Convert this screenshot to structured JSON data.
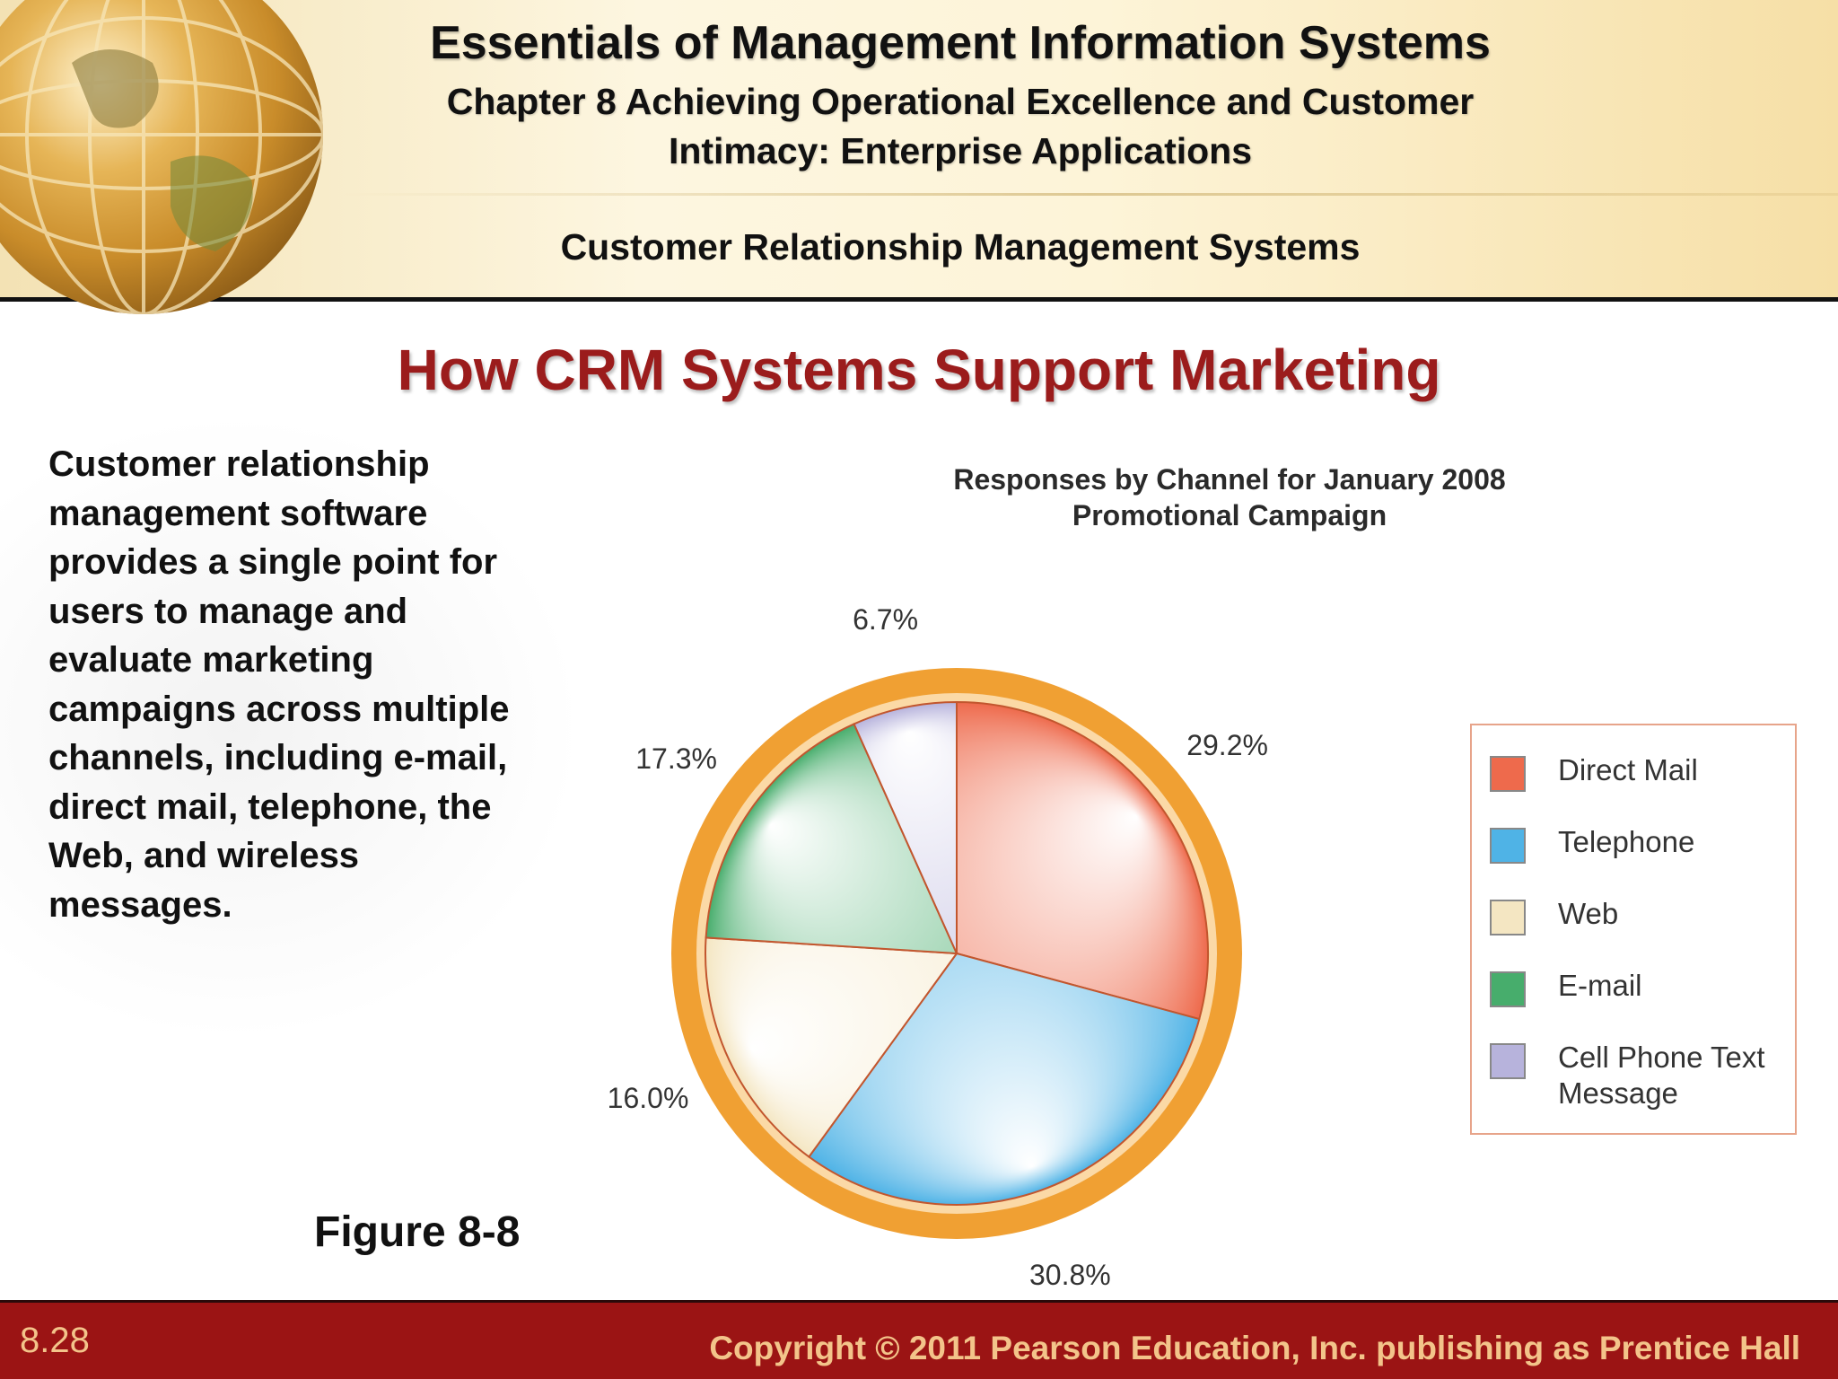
{
  "header": {
    "title": "Essentials of Management Information Systems",
    "chapter_line1": "Chapter 8 Achieving Operational Excellence and Customer",
    "chapter_line2": "Intimacy: Enterprise Applications",
    "section": "Customer Relationship Management Systems"
  },
  "slide": {
    "title": "How CRM Systems Support Marketing",
    "body": "Customer relationship management software provides a single point for users to manage and evaluate marketing campaigns across multiple channels, including e-mail, direct mail, telephone, the Web, and wireless messages.",
    "figure_label": "Figure 8-8"
  },
  "chart_data": {
    "type": "pie",
    "title_line1": "Responses by Channel for January 2008",
    "title_line2": "Promotional Campaign",
    "slices": [
      {
        "name": "Direct Mail",
        "value": 29.2,
        "label": "29.2%",
        "color": "#ee6a4c"
      },
      {
        "name": "Telephone",
        "value": 30.8,
        "label": "30.8%",
        "color": "#4fb3e6"
      },
      {
        "name": "Web",
        "value": 16.0,
        "label": "16.0%",
        "color": "#f4e6c2"
      },
      {
        "name": "E-mail",
        "value": 17.3,
        "label": "17.3%",
        "color": "#47ad6c"
      },
      {
        "name": "Cell Phone Text Message",
        "value": 6.7,
        "label": "6.7%",
        "color": "#b7b3dc"
      }
    ],
    "legend": {
      "position": "right",
      "entries": [
        "Direct Mail",
        "Telephone",
        "Web",
        "E-mail",
        "Cell Phone Text Message"
      ]
    },
    "ring_color": "#f0a033"
  },
  "footer": {
    "page": "8.28",
    "copyright": "Copyright © 2011 Pearson Education, Inc. publishing as Prentice Hall"
  }
}
